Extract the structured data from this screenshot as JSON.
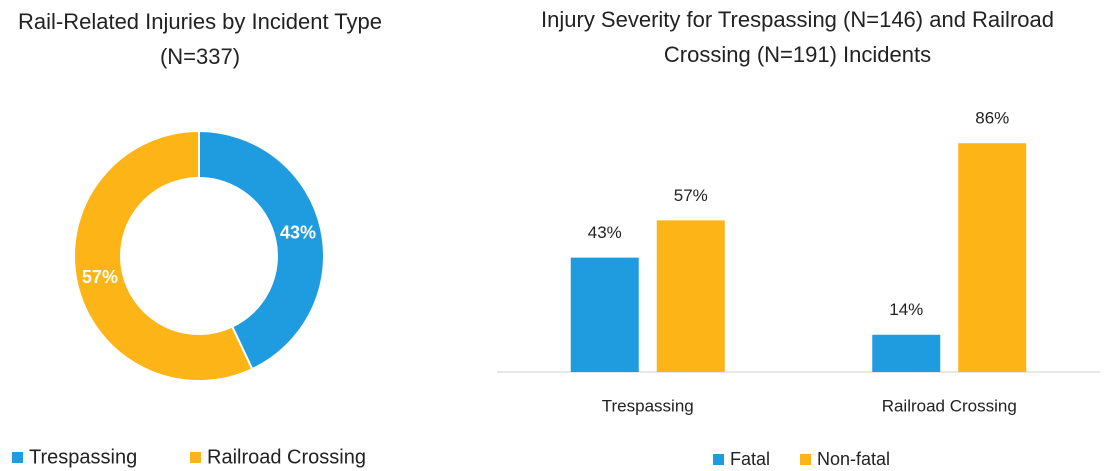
{
  "chart_data": [
    {
      "type": "donut",
      "title": "Rail-Related Injuries by Incident Type (N=337)",
      "categories": [
        "Trespassing",
        "Railroad Crossing"
      ],
      "values": [
        43,
        57
      ],
      "value_labels": [
        "43%",
        "57%"
      ],
      "colors": [
        "#1f9ce0",
        "#fdb416"
      ],
      "legend": "bottom"
    },
    {
      "type": "bar",
      "title": "Injury Severity for Trespassing (N=146) and Railroad Crossing (N=191) Incidents",
      "categories": [
        "Trespassing",
        "Railroad Crossing"
      ],
      "series": [
        {
          "name": "Fatal",
          "color": "#1f9ce0",
          "values": [
            43,
            14
          ],
          "value_labels": [
            "43%",
            "14%"
          ]
        },
        {
          "name": "Non-fatal",
          "color": "#fdb416",
          "values": [
            57,
            86
          ],
          "value_labels": [
            "57%",
            "86%"
          ]
        }
      ],
      "ylim": [
        0,
        100
      ],
      "legend": "bottom"
    }
  ]
}
